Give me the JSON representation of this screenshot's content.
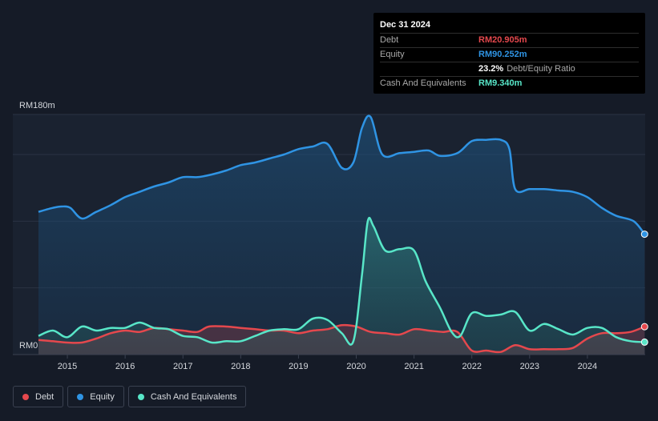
{
  "tooltip": {
    "date": "Dec 31 2024",
    "debt_label": "Debt",
    "debt_value": "RM20.905m",
    "equity_label": "Equity",
    "equity_value": "RM90.252m",
    "ratio_value": "23.2%",
    "ratio_label": "Debt/Equity Ratio",
    "cash_label": "Cash And Equivalents",
    "cash_value": "RM9.340m"
  },
  "legend": {
    "debt": "Debt",
    "equity": "Equity",
    "cash": "Cash And Equivalents"
  },
  "colors": {
    "debt": "#e5484d",
    "equity": "#2f94e4",
    "cash": "#58e6c8"
  },
  "chart_data": {
    "type": "area",
    "title": "",
    "ylabel": "",
    "xlabel": "",
    "y_max_label": "RM180m",
    "y_min_label": "RM0",
    "ylim": [
      0,
      180
    ],
    "xlim": [
      2014.5,
      2025.0
    ],
    "x_ticks": [
      "2015",
      "2016",
      "2017",
      "2018",
      "2019",
      "2020",
      "2021",
      "2022",
      "2023",
      "2024"
    ],
    "series": [
      {
        "name": "Equity",
        "points": [
          [
            2014.5,
            107
          ],
          [
            2014.75,
            110
          ],
          [
            2014.9,
            111
          ],
          [
            2015.05,
            110
          ],
          [
            2015.25,
            102
          ],
          [
            2015.5,
            107
          ],
          [
            2015.75,
            112
          ],
          [
            2016.0,
            118
          ],
          [
            2016.25,
            122
          ],
          [
            2016.5,
            126
          ],
          [
            2016.75,
            129
          ],
          [
            2017.0,
            133
          ],
          [
            2017.25,
            133
          ],
          [
            2017.5,
            135
          ],
          [
            2017.75,
            138
          ],
          [
            2018.0,
            142
          ],
          [
            2018.25,
            144
          ],
          [
            2018.5,
            147
          ],
          [
            2018.75,
            150
          ],
          [
            2019.0,
            154
          ],
          [
            2019.25,
            156
          ],
          [
            2019.5,
            158
          ],
          [
            2019.75,
            140
          ],
          [
            2019.95,
            144
          ],
          [
            2020.1,
            170
          ],
          [
            2020.25,
            178
          ],
          [
            2020.45,
            150
          ],
          [
            2020.75,
            151
          ],
          [
            2021.0,
            152
          ],
          [
            2021.25,
            153
          ],
          [
            2021.45,
            149
          ],
          [
            2021.75,
            151
          ],
          [
            2022.0,
            160
          ],
          [
            2022.25,
            161
          ],
          [
            2022.5,
            161
          ],
          [
            2022.65,
            154
          ],
          [
            2022.75,
            124
          ],
          [
            2023.0,
            124
          ],
          [
            2023.25,
            124
          ],
          [
            2023.5,
            123
          ],
          [
            2023.75,
            122
          ],
          [
            2024.0,
            118
          ],
          [
            2024.25,
            110
          ],
          [
            2024.5,
            104
          ],
          [
            2024.8,
            100
          ],
          [
            2024.99,
            90.252
          ]
        ]
      },
      {
        "name": "Debt",
        "points": [
          [
            2014.5,
            11
          ],
          [
            2014.75,
            10
          ],
          [
            2015.0,
            9
          ],
          [
            2015.25,
            9
          ],
          [
            2015.5,
            12
          ],
          [
            2015.75,
            16
          ],
          [
            2016.0,
            18
          ],
          [
            2016.25,
            17
          ],
          [
            2016.5,
            20
          ],
          [
            2016.75,
            19
          ],
          [
            2017.0,
            18
          ],
          [
            2017.25,
            17
          ],
          [
            2017.45,
            21
          ],
          [
            2017.75,
            21
          ],
          [
            2018.0,
            20
          ],
          [
            2018.25,
            19
          ],
          [
            2018.5,
            18
          ],
          [
            2018.75,
            18
          ],
          [
            2019.0,
            16
          ],
          [
            2019.25,
            18
          ],
          [
            2019.5,
            19
          ],
          [
            2019.75,
            22
          ],
          [
            2020.0,
            21
          ],
          [
            2020.25,
            17
          ],
          [
            2020.5,
            16
          ],
          [
            2020.75,
            15
          ],
          [
            2021.0,
            19
          ],
          [
            2021.25,
            18
          ],
          [
            2021.5,
            17
          ],
          [
            2021.75,
            17
          ],
          [
            2022.0,
            3
          ],
          [
            2022.25,
            3
          ],
          [
            2022.5,
            2
          ],
          [
            2022.75,
            7
          ],
          [
            2023.0,
            4
          ],
          [
            2023.25,
            4
          ],
          [
            2023.5,
            4
          ],
          [
            2023.75,
            5
          ],
          [
            2024.0,
            12
          ],
          [
            2024.25,
            16
          ],
          [
            2024.5,
            16
          ],
          [
            2024.75,
            17
          ],
          [
            2024.99,
            20.905
          ]
        ]
      },
      {
        "name": "Cash And Equivalents",
        "points": [
          [
            2014.5,
            14
          ],
          [
            2014.75,
            18
          ],
          [
            2015.0,
            13
          ],
          [
            2015.25,
            21
          ],
          [
            2015.5,
            18
          ],
          [
            2015.75,
            20
          ],
          [
            2016.0,
            20
          ],
          [
            2016.25,
            24
          ],
          [
            2016.5,
            20
          ],
          [
            2016.75,
            19
          ],
          [
            2017.0,
            14
          ],
          [
            2017.25,
            13
          ],
          [
            2017.5,
            9
          ],
          [
            2017.75,
            10
          ],
          [
            2018.0,
            10
          ],
          [
            2018.25,
            14
          ],
          [
            2018.5,
            18
          ],
          [
            2018.75,
            19
          ],
          [
            2019.0,
            19
          ],
          [
            2019.25,
            27
          ],
          [
            2019.5,
            26
          ],
          [
            2019.75,
            16
          ],
          [
            2019.95,
            10
          ],
          [
            2020.1,
            60
          ],
          [
            2020.2,
            100
          ],
          [
            2020.3,
            96
          ],
          [
            2020.5,
            78
          ],
          [
            2020.75,
            79
          ],
          [
            2021.0,
            78
          ],
          [
            2021.2,
            55
          ],
          [
            2021.45,
            35
          ],
          [
            2021.65,
            17
          ],
          [
            2021.8,
            14
          ],
          [
            2022.0,
            31
          ],
          [
            2022.25,
            29
          ],
          [
            2022.5,
            30
          ],
          [
            2022.75,
            32
          ],
          [
            2023.0,
            18
          ],
          [
            2023.25,
            23
          ],
          [
            2023.5,
            19
          ],
          [
            2023.75,
            15
          ],
          [
            2024.0,
            20
          ],
          [
            2024.25,
            20
          ],
          [
            2024.5,
            13
          ],
          [
            2024.75,
            10
          ],
          [
            2024.99,
            9.34
          ]
        ]
      }
    ]
  }
}
